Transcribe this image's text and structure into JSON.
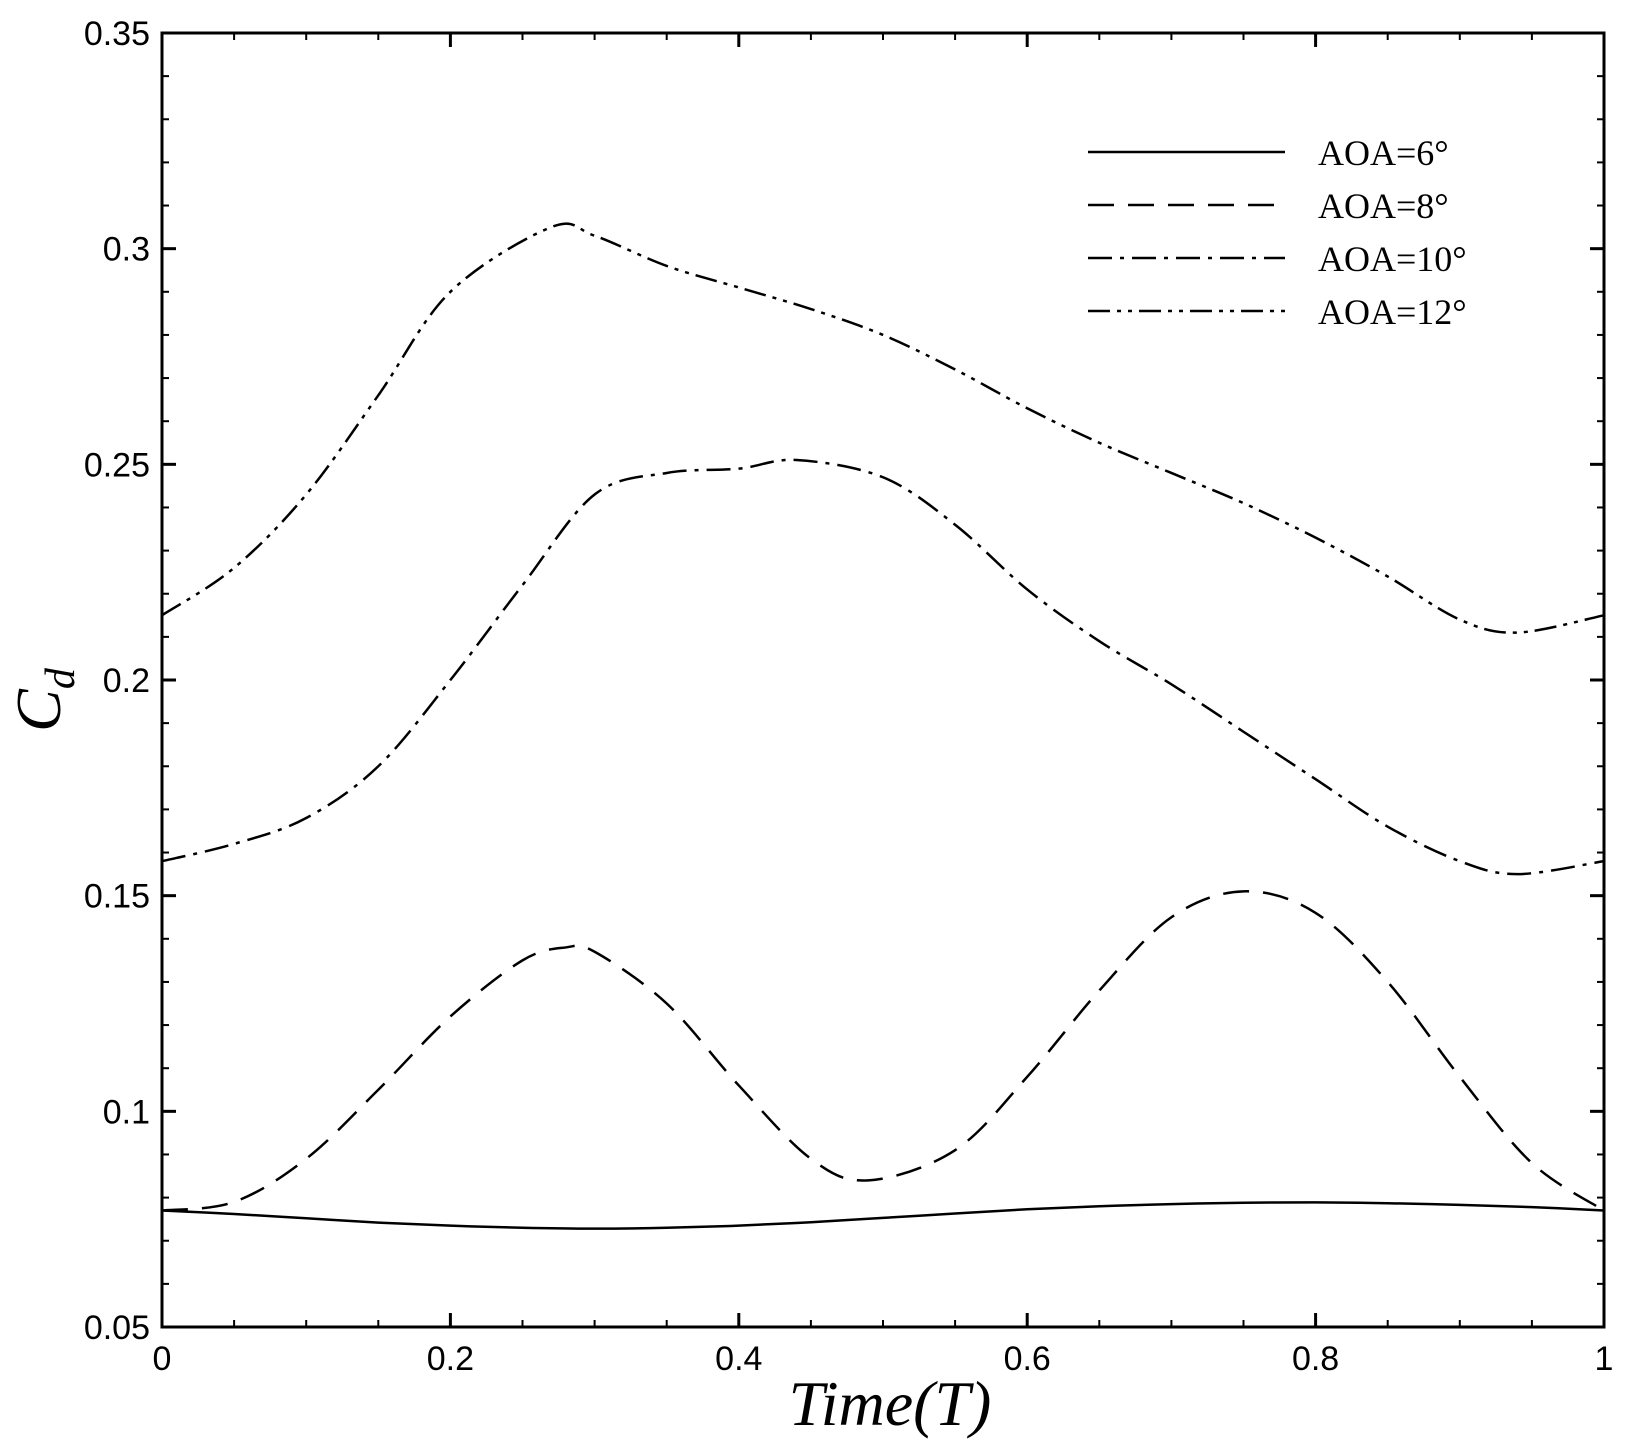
{
  "chart_data": {
    "type": "line",
    "title": "",
    "xlabel": "Time(T)",
    "ylabel": "C",
    "ylabel_subscript": "d",
    "xlim": [
      0,
      1
    ],
    "ylim": [
      0.05,
      0.35
    ],
    "xticks": [
      0,
      0.2,
      0.4,
      0.6,
      0.8,
      1
    ],
    "xtick_labels": [
      "0",
      "0.2",
      "0.4",
      "0.6",
      "0.8",
      "1"
    ],
    "yticks": [
      0.05,
      0.1,
      0.15,
      0.2,
      0.25,
      0.3,
      0.35
    ],
    "ytick_labels": [
      "0.05",
      "0.1",
      "0.15",
      "0.2",
      "0.25",
      "0.3",
      "0.35"
    ],
    "x_minor_step": 0.05,
    "y_minor_step": 0.01,
    "grid": false,
    "legend_position": "top-right",
    "series": [
      {
        "name": "AOA=6°",
        "style": "solid",
        "x": [
          0,
          0.05,
          0.1,
          0.15,
          0.2,
          0.25,
          0.3,
          0.35,
          0.4,
          0.45,
          0.5,
          0.55,
          0.6,
          0.65,
          0.7,
          0.75,
          0.8,
          0.85,
          0.9,
          0.95,
          1.0
        ],
        "values": [
          0.077,
          0.0762,
          0.0752,
          0.0742,
          0.0735,
          0.073,
          0.0728,
          0.073,
          0.0735,
          0.0743,
          0.0753,
          0.0763,
          0.0773,
          0.078,
          0.0785,
          0.0788,
          0.0789,
          0.0787,
          0.0783,
          0.0778,
          0.077
        ]
      },
      {
        "name": "AOA=8°",
        "style": "dash",
        "x": [
          0,
          0.05,
          0.1,
          0.15,
          0.2,
          0.25,
          0.28,
          0.3,
          0.35,
          0.4,
          0.45,
          0.49,
          0.55,
          0.6,
          0.65,
          0.7,
          0.75,
          0.8,
          0.85,
          0.9,
          0.95,
          1.0
        ],
        "values": [
          0.077,
          0.079,
          0.089,
          0.105,
          0.122,
          0.135,
          0.138,
          0.137,
          0.125,
          0.106,
          0.089,
          0.084,
          0.091,
          0.108,
          0.128,
          0.145,
          0.151,
          0.146,
          0.13,
          0.108,
          0.088,
          0.077
        ]
      },
      {
        "name": "AOA=10°",
        "style": "dashdot",
        "x": [
          0,
          0.05,
          0.1,
          0.15,
          0.2,
          0.25,
          0.3,
          0.35,
          0.4,
          0.44,
          0.5,
          0.55,
          0.6,
          0.65,
          0.7,
          0.75,
          0.8,
          0.85,
          0.9,
          0.94,
          1.0
        ],
        "values": [
          0.158,
          0.162,
          0.168,
          0.18,
          0.2,
          0.222,
          0.243,
          0.248,
          0.249,
          0.251,
          0.247,
          0.236,
          0.221,
          0.209,
          0.199,
          0.188,
          0.177,
          0.166,
          0.158,
          0.155,
          0.158
        ]
      },
      {
        "name": "AOA=12°",
        "style": "dashdotdot",
        "x": [
          0,
          0.05,
          0.1,
          0.15,
          0.2,
          0.27,
          0.3,
          0.35,
          0.4,
          0.45,
          0.5,
          0.55,
          0.6,
          0.65,
          0.7,
          0.75,
          0.8,
          0.85,
          0.9,
          0.94,
          1.0
        ],
        "values": [
          0.215,
          0.226,
          0.243,
          0.266,
          0.29,
          0.305,
          0.303,
          0.296,
          0.291,
          0.286,
          0.28,
          0.272,
          0.263,
          0.255,
          0.248,
          0.241,
          0.233,
          0.224,
          0.214,
          0.211,
          0.215
        ]
      }
    ]
  }
}
